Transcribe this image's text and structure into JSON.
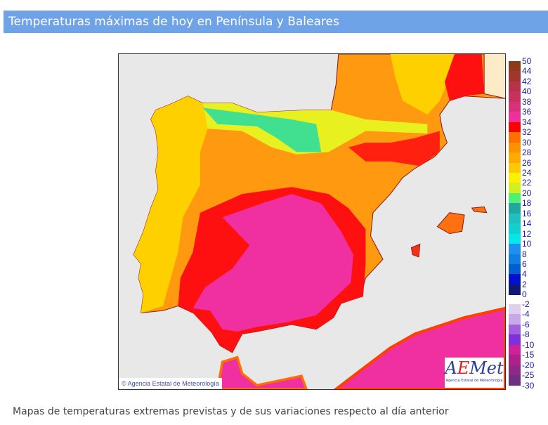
{
  "header": {
    "title": "Temperaturas máximas de hoy en Península y Baleares"
  },
  "map": {
    "copyright": "© Agencia Estatal de Meteorología",
    "logo_text": "AEMet",
    "logo_subtitle": "Agencia Estatal de Meteorología"
  },
  "legend": {
    "positive_labels": [
      "50",
      "44",
      "42",
      "40",
      "38",
      "36",
      "34",
      "32",
      "30",
      "28",
      "26",
      "24",
      "22",
      "20",
      "18",
      "16",
      "14",
      "12",
      "10",
      "8",
      "6",
      "4",
      "2",
      "0"
    ],
    "positive_colors": [
      "#8b3a1a",
      "#a0362e",
      "#b4334a",
      "#c83060",
      "#d8307a",
      "#f0309a",
      "#ff0000",
      "#ff7000",
      "#ff9000",
      "#ffaa00",
      "#ffc800",
      "#fff000",
      "#d0f020",
      "#50f070",
      "#20a8a0",
      "#20c0c0",
      "#10d0d0",
      "#00e8e8",
      "#2090f0",
      "#1080e0",
      "#0060d0",
      "#0010d0",
      "#101870"
    ],
    "negative_labels": [
      "-2",
      "-4",
      "-6",
      "-8",
      "-10",
      "-15",
      "-20",
      "-25",
      "-30"
    ],
    "negative_colors": [
      "#e0d0f0",
      "#c8a8e8",
      "#a060e0",
      "#8030d8",
      "#d0209a",
      "#b0208a",
      "#902888",
      "#703080"
    ]
  },
  "caption": "Mapas de temperaturas extremas previstas y de sus variaciones respecto al día anterior"
}
